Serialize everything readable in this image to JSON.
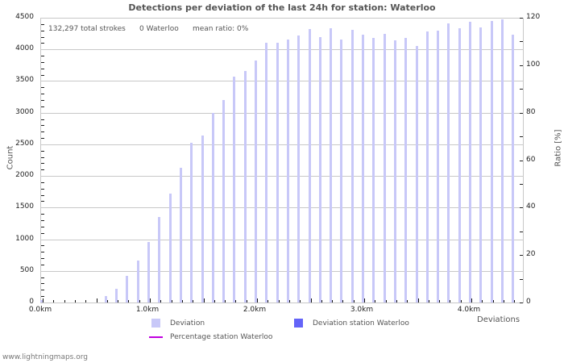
{
  "title": "Detections per deviation of the last 24h for station: Waterloo",
  "stats": {
    "total_strokes": "132,297 total strokes",
    "station_count": "0 Waterloo",
    "mean_ratio": "mean ratio: 0%"
  },
  "axes": {
    "y_left_label": "Count",
    "y_right_label": "Ratio [%]",
    "x_label": "Deviations",
    "y_left_ticks": [
      "0",
      "500",
      "1000",
      "1500",
      "2000",
      "2500",
      "3000",
      "3500",
      "4000",
      "4500"
    ],
    "y_right_ticks": [
      "0",
      "20",
      "40",
      "60",
      "80",
      "100",
      "120"
    ],
    "x_ticks": [
      "0.0km",
      "1.0km",
      "2.0km",
      "3.0km",
      "4.0km"
    ]
  },
  "legend": {
    "deviation": "Deviation",
    "deviation_station": "Deviation station Waterloo",
    "percentage_station": "Percentage station Waterloo"
  },
  "colors": {
    "deviation": "#c8c8f8",
    "deviation_station": "#6464f8",
    "percentage_station": "#c000e0"
  },
  "footer": "www.lightningmaps.org",
  "chart_data": {
    "type": "bar",
    "title": "Detections per deviation of the last 24h for station: Waterloo",
    "xlabel": "Deviations",
    "ylabel": "Count",
    "y2label": "Ratio [%]",
    "ylim": [
      0,
      4500
    ],
    "y2lim": [
      0,
      120
    ],
    "grid": true,
    "legend_position": "bottom",
    "categories": [
      "0.0",
      "0.1",
      "0.2",
      "0.3",
      "0.4",
      "0.5",
      "0.6",
      "0.7",
      "0.8",
      "0.9",
      "1.0",
      "1.1",
      "1.2",
      "1.3",
      "1.4",
      "1.5",
      "1.6",
      "1.7",
      "1.8",
      "1.9",
      "2.0",
      "2.1",
      "2.2",
      "2.3",
      "2.4",
      "2.5",
      "2.6",
      "2.7",
      "2.8",
      "2.9",
      "3.0",
      "3.1",
      "3.2",
      "3.3",
      "3.4",
      "3.5",
      "3.6",
      "3.7",
      "3.8",
      "3.9",
      "4.0",
      "4.1",
      "4.2",
      "4.3",
      "4.4"
    ],
    "series": [
      {
        "name": "Deviation",
        "values": [
          40,
          0,
          0,
          0,
          0,
          0,
          100,
          220,
          420,
          665,
          960,
          1355,
          1715,
          2135,
          2520,
          2645,
          3000,
          3195,
          3565,
          3655,
          3830,
          4100,
          4100,
          4160,
          4215,
          4320,
          4190,
          4330,
          4150,
          4305,
          4230,
          4180,
          4240,
          4140,
          4175,
          4060,
          4280,
          4290,
          4410,
          4330,
          4435,
          4345,
          4450,
          4480,
          4230
        ]
      },
      {
        "name": "Deviation station Waterloo",
        "values": [
          0,
          0,
          0,
          0,
          0,
          0,
          0,
          0,
          0,
          0,
          0,
          0,
          0,
          0,
          0,
          0,
          0,
          0,
          0,
          0,
          0,
          0,
          0,
          0,
          0,
          0,
          0,
          0,
          0,
          0,
          0,
          0,
          0,
          0,
          0,
          0,
          0,
          0,
          0,
          0,
          0,
          0,
          0,
          0,
          0
        ]
      },
      {
        "name": "Percentage station Waterloo",
        "axis": "right",
        "values": [
          0,
          0,
          0,
          0,
          0,
          0,
          0,
          0,
          0,
          0,
          0,
          0,
          0,
          0,
          0,
          0,
          0,
          0,
          0,
          0,
          0,
          0,
          0,
          0,
          0,
          0,
          0,
          0,
          0,
          0,
          0,
          0,
          0,
          0,
          0,
          0,
          0,
          0,
          0,
          0,
          0,
          0,
          0,
          0,
          0
        ]
      }
    ]
  }
}
